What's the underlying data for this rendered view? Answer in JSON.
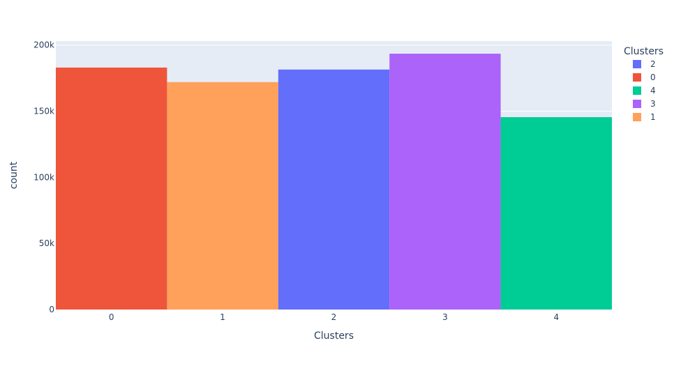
{
  "chart_data": {
    "type": "bar",
    "xlabel": "Clusters",
    "ylabel": "count",
    "ylim": [
      0,
      200000
    ],
    "y_ticks": [
      {
        "value": 0,
        "label": "0"
      },
      {
        "value": 50000,
        "label": "50k"
      },
      {
        "value": 100000,
        "label": "100k"
      },
      {
        "value": 150000,
        "label": "150k"
      },
      {
        "value": 200000,
        "label": "200k"
      }
    ],
    "categories": [
      "0",
      "1",
      "2",
      "3",
      "4"
    ],
    "bars": [
      {
        "category": "0",
        "value": 183000,
        "color": "#EF553B"
      },
      {
        "category": "1",
        "value": 172000,
        "color": "#FFA15A"
      },
      {
        "category": "2",
        "value": 181500,
        "color": "#636EFA"
      },
      {
        "category": "3",
        "value": 193500,
        "color": "#AB63FA"
      },
      {
        "category": "4",
        "value": 145500,
        "color": "#00CC96"
      }
    ],
    "legend": {
      "title": "Clusters",
      "position": "top-right",
      "items": [
        {
          "label": "2",
          "color": "#636EFA"
        },
        {
          "label": "0",
          "color": "#EF553B"
        },
        {
          "label": "4",
          "color": "#00CC96"
        },
        {
          "label": "3",
          "color": "#AB63FA"
        },
        {
          "label": "1",
          "color": "#FFA15A"
        }
      ]
    },
    "plot_background": "#E5ECF6",
    "grid": true
  }
}
